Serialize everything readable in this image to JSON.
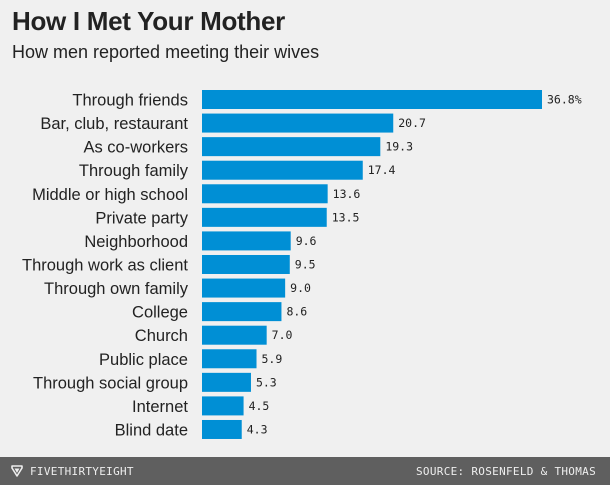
{
  "chart_data": {
    "type": "bar",
    "orientation": "horizontal",
    "title": "How I Met Your Mother",
    "subtitle": "How men reported meeting their wives",
    "categories": [
      "Through friends",
      "Bar, club, restaurant",
      "As co-workers",
      "Through family",
      "Middle or high school",
      "Private party",
      "Neighborhood",
      "Through work as client",
      "Through own family",
      "College",
      "Church",
      "Public place",
      "Through social group",
      "Internet",
      "Blind date"
    ],
    "values": [
      36.8,
      20.7,
      19.3,
      17.4,
      13.6,
      13.5,
      9.6,
      9.5,
      9.0,
      8.6,
      7.0,
      5.9,
      5.3,
      4.5,
      4.3
    ],
    "value_labels": [
      "36.8%",
      "20.7",
      "19.3",
      "17.4",
      "13.6",
      "13.5",
      "9.6",
      "9.5",
      "9.0",
      "8.6",
      "7.0",
      "5.9",
      "5.3",
      "4.5",
      "4.3"
    ],
    "unit": "%",
    "xlim": [
      0,
      36.8
    ],
    "xlabel": "",
    "ylabel": "",
    "grid": false,
    "bar_color": "#008fd5"
  },
  "footer": {
    "brand": "FIVETHIRTYEIGHT",
    "brand_icon": "fivethirtyeight-logo-icon",
    "source": "SOURCE: ROSENFELD & THOMAS"
  }
}
